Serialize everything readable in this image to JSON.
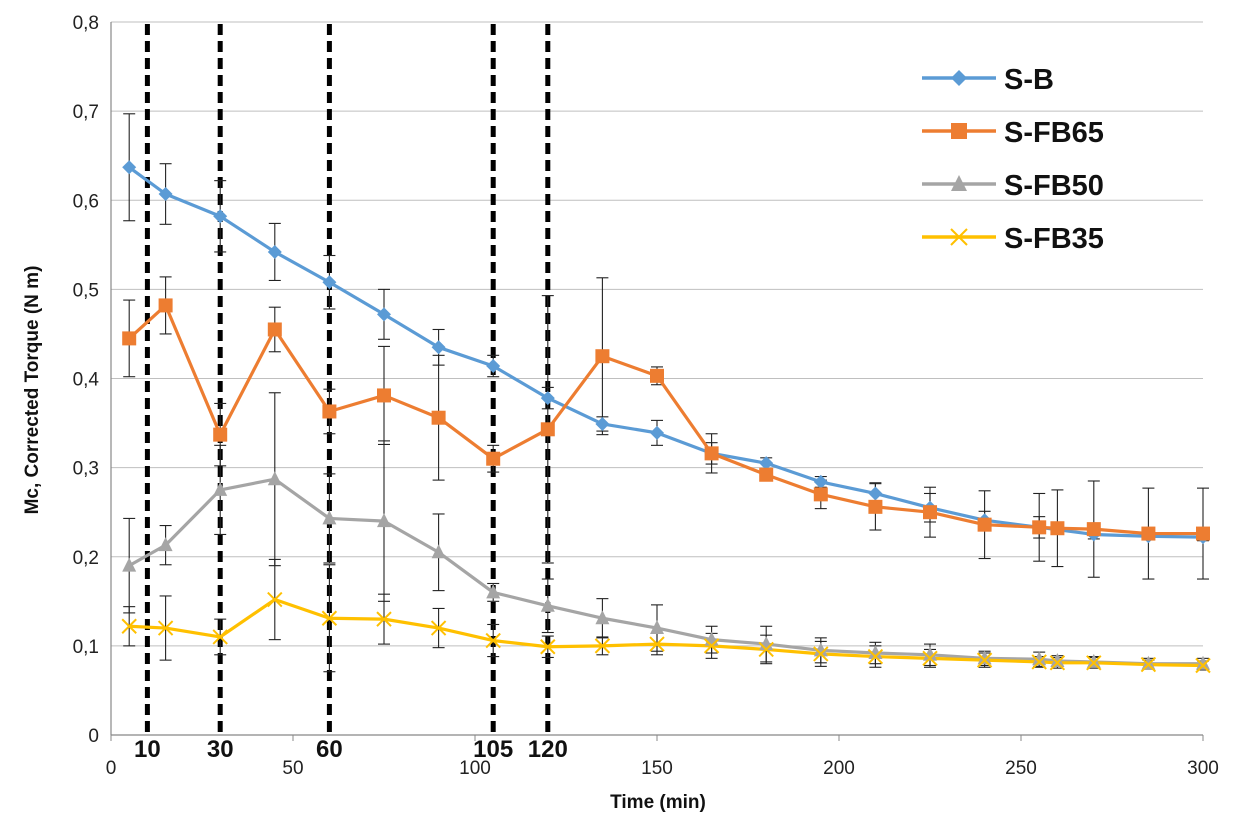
{
  "chart_data": {
    "type": "line",
    "title": "",
    "xlabel": "Time (min)",
    "ylabel": "Mc, Corrected Torque (N m)",
    "xlim": [
      0,
      300
    ],
    "ylim": [
      0,
      0.8
    ],
    "x_ticks": [
      0,
      50,
      100,
      150,
      200,
      250,
      300
    ],
    "y_ticks": [
      "0",
      "0,1",
      "0,2",
      "0,3",
      "0,4",
      "0,5",
      "0,6",
      "0,7",
      "0,8"
    ],
    "grid": "horizontal",
    "legend_position": "top-right",
    "vertical_markers": [
      {
        "x": 10,
        "label": "10"
      },
      {
        "x": 30,
        "label": "30"
      },
      {
        "x": 60,
        "label": "60"
      },
      {
        "x": 105,
        "label": "105"
      },
      {
        "x": 120,
        "label": "120"
      }
    ],
    "series": [
      {
        "name": "S-B",
        "color": "#5b9bd5",
        "marker": "diamond",
        "x": [
          5,
          15,
          30,
          45,
          60,
          75,
          90,
          105,
          120,
          135,
          150,
          165,
          180,
          195,
          210,
          225,
          240,
          255,
          270,
          285,
          300
        ],
        "y": [
          0.637,
          0.607,
          0.582,
          0.542,
          0.508,
          0.472,
          0.435,
          0.414,
          0.378,
          0.349,
          0.339,
          0.316,
          0.305,
          0.284,
          0.271,
          0.255,
          0.241,
          0.233,
          0.225,
          0.223,
          0.222
        ],
        "err": [
          0.06,
          0.034,
          0.04,
          0.032,
          0.03,
          0.028,
          0.02,
          0.012,
          0.012,
          0.008,
          0.014,
          0.012,
          0.006,
          0.006,
          0.012,
          0.016,
          0.01,
          0.012,
          0.005,
          0.004,
          0.004
        ]
      },
      {
        "name": "S-FB65",
        "color": "#ed7d31",
        "marker": "square",
        "x": [
          5,
          15,
          30,
          45,
          60,
          75,
          90,
          105,
          120,
          135,
          150,
          165,
          180,
          195,
          210,
          225,
          240,
          255,
          260,
          270,
          285,
          300
        ],
        "y": [
          0.445,
          0.482,
          0.337,
          0.455,
          0.363,
          0.381,
          0.356,
          0.31,
          0.343,
          0.425,
          0.403,
          0.316,
          0.292,
          0.27,
          0.256,
          0.25,
          0.236,
          0.233,
          0.232,
          0.231,
          0.226,
          0.226
        ],
        "err": [
          0.043,
          0.032,
          0.035,
          0.025,
          0.025,
          0.055,
          0.07,
          0.015,
          0.15,
          0.088,
          0.01,
          0.022,
          0.005,
          0.016,
          0.026,
          0.028,
          0.038,
          0.038,
          0.043,
          0.054,
          0.051,
          0.051
        ]
      },
      {
        "name": "S-FB50",
        "color": "#a5a5a5",
        "marker": "triangle",
        "x": [
          5,
          15,
          30,
          45,
          60,
          75,
          90,
          105,
          120,
          135,
          150,
          165,
          180,
          195,
          210,
          225,
          240,
          255,
          260,
          270,
          285,
          300
        ],
        "y": [
          0.19,
          0.213,
          0.275,
          0.287,
          0.243,
          0.24,
          0.205,
          0.16,
          0.145,
          0.131,
          0.12,
          0.107,
          0.102,
          0.095,
          0.092,
          0.09,
          0.086,
          0.085,
          0.083,
          0.082,
          0.08,
          0.08
        ],
        "err": [
          0.053,
          0.022,
          0.05,
          0.097,
          0.05,
          0.09,
          0.043,
          0.01,
          0.03,
          0.022,
          0.026,
          0.015,
          0.02,
          0.014,
          0.012,
          0.012,
          0.008,
          0.008,
          0.006,
          0.006,
          0.006,
          0.006
        ]
      },
      {
        "name": "S-FB35",
        "color": "#ffc000",
        "marker": "cross",
        "x": [
          5,
          15,
          30,
          45,
          60,
          75,
          90,
          105,
          120,
          135,
          150,
          165,
          180,
          195,
          210,
          225,
          240,
          255,
          260,
          270,
          285,
          300
        ],
        "y": [
          0.122,
          0.12,
          0.11,
          0.152,
          0.131,
          0.13,
          0.12,
          0.106,
          0.099,
          0.1,
          0.102,
          0.1,
          0.096,
          0.091,
          0.088,
          0.086,
          0.084,
          0.082,
          0.081,
          0.081,
          0.079,
          0.078
        ],
        "err": [
          0.022,
          0.036,
          0.02,
          0.045,
          0.06,
          0.028,
          0.022,
          0.018,
          0.012,
          0.01,
          0.012,
          0.014,
          0.016,
          0.014,
          0.012,
          0.01,
          0.008,
          0.006,
          0.006,
          0.006,
          0.005,
          0.005
        ]
      }
    ]
  }
}
